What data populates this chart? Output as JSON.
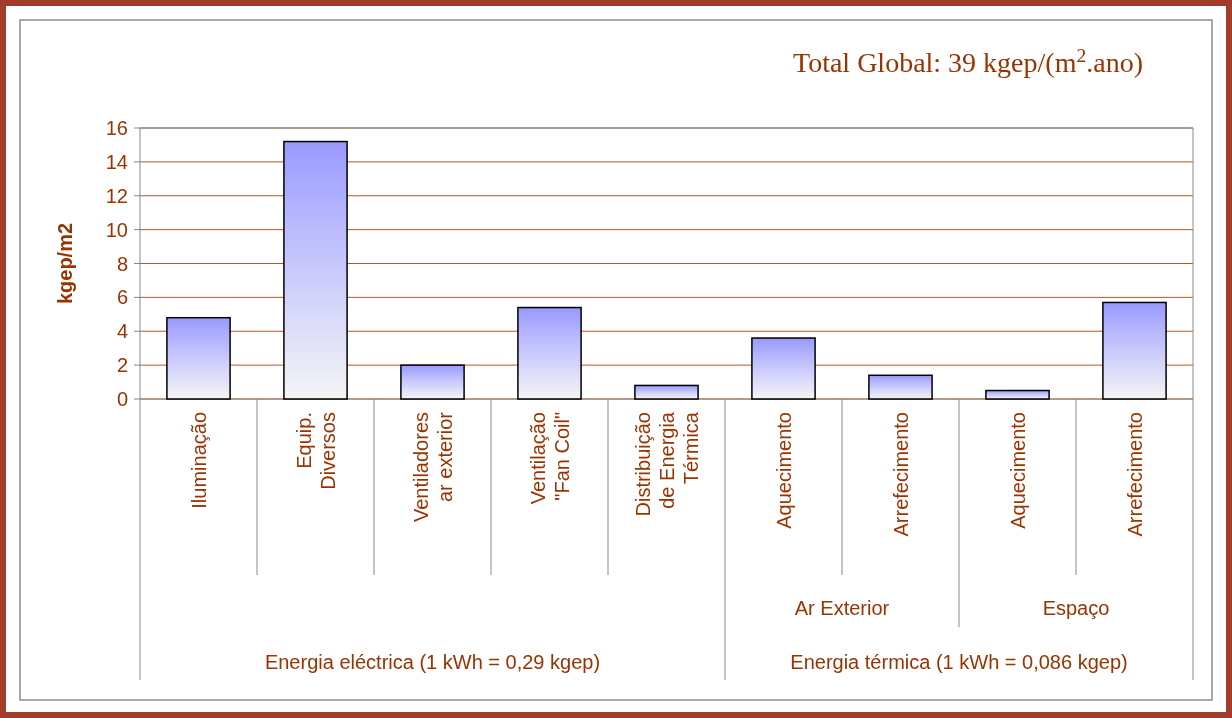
{
  "chart_data": {
    "type": "bar",
    "title": "Total Global: 39 kgep/(m$^{2}$.ano)",
    "ylabel": "kgep/m2",
    "categories": [
      "Iluminação",
      "Equip.\nDiversos",
      "Ventiladores\nar exterior",
      "Ventilação\n\"Fan Coil\"",
      "Distribuição\nde Energia\nTérmica",
      "Aquecimento",
      "Arrefecimento",
      "Aquecimento",
      "Arrefecimento"
    ],
    "values": [
      4.8,
      15.2,
      2.0,
      5.4,
      0.8,
      3.6,
      1.4,
      0.5,
      5.7
    ],
    "color": "#9999ff",
    "ylim": [
      0,
      16
    ],
    "yticks": [
      0,
      2,
      4,
      6,
      8,
      10,
      12,
      14,
      16
    ],
    "grid": "y",
    "annotations": [
      "Ar Exterior",
      "Espaço",
      "Energia eléctrica (1 kWh = 0,29 kgep)",
      "Energia térmica (1 kWh = 0,086 kgep)"
    ]
  }
}
